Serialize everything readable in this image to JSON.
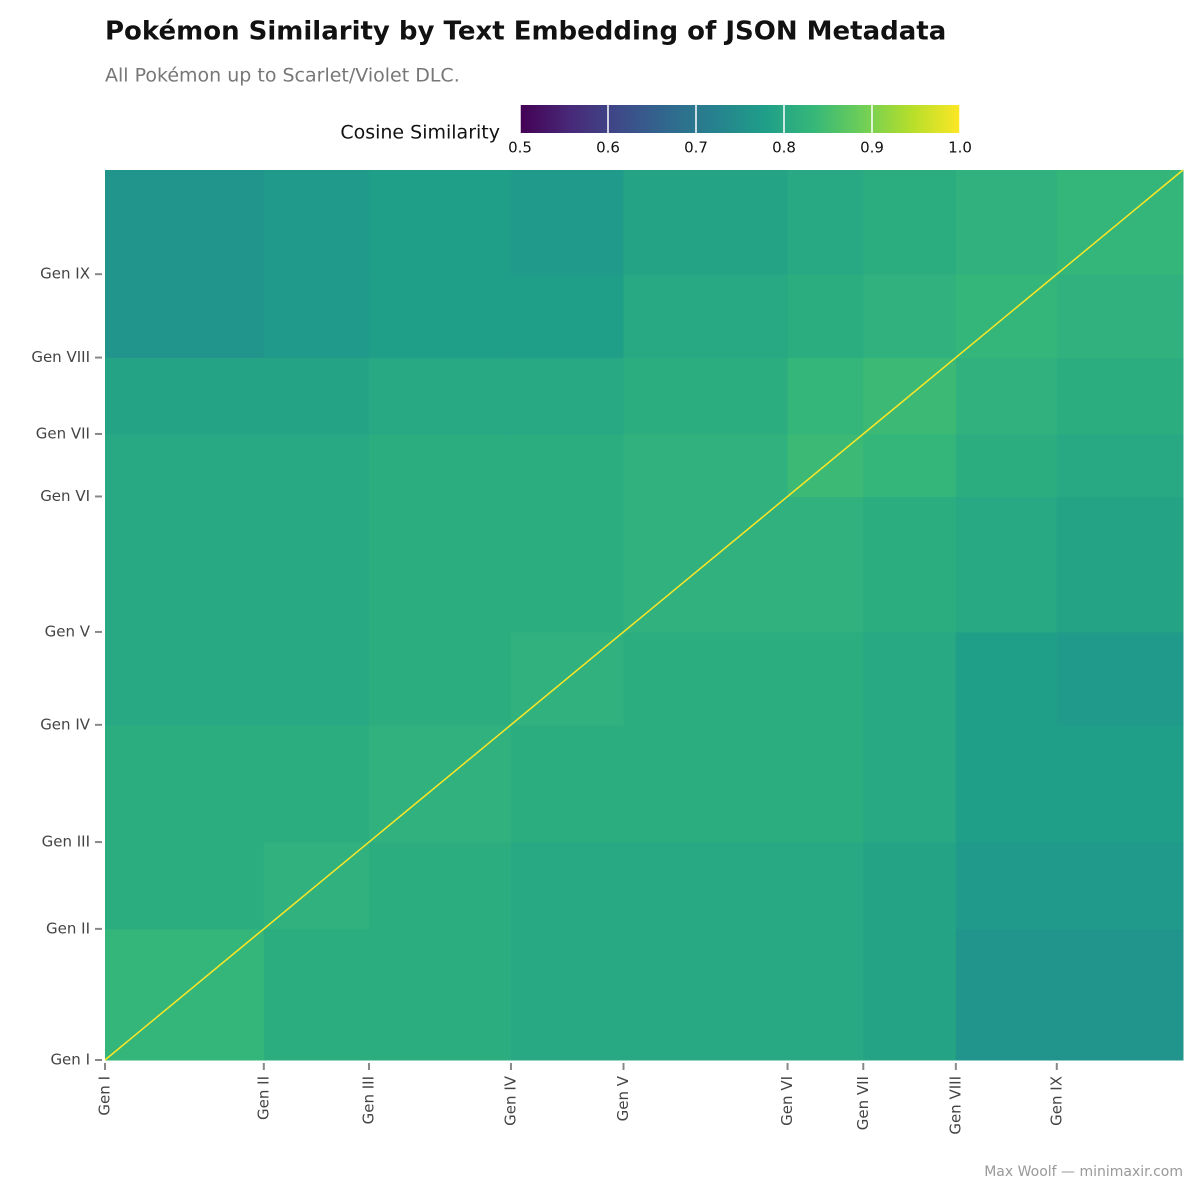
{
  "chart_data": {
    "type": "heatmap",
    "title": "Pokémon Similarity by Text Embedding of JSON Metadata",
    "subtitle": "All Pokémon up to Scarlet/Violet DLC.",
    "caption": "Max Woolf — minimaxir.com",
    "colorbar_label": "Cosine Similarity",
    "colormap": "viridis",
    "clim": [
      0.5,
      1.0
    ],
    "cticks": [
      0.5,
      0.6,
      0.7,
      0.8,
      0.9,
      {
        "value": 1.0,
        "label": "1.0"
      }
    ],
    "xlim": [
      1,
      1026
    ],
    "ylim": [
      1,
      1026
    ],
    "xticks": [
      {
        "value": 1,
        "label": "Gen I"
      },
      {
        "value": 152,
        "label": "Gen II"
      },
      {
        "value": 252,
        "label": "Gen III"
      },
      {
        "value": 387,
        "label": "Gen IV"
      },
      {
        "value": 494,
        "label": "Gen V"
      },
      {
        "value": 650,
        "label": "Gen VI"
      },
      {
        "value": 722,
        "label": "Gen VII"
      },
      {
        "value": 810,
        "label": "Gen VIII"
      },
      {
        "value": 906,
        "label": "Gen IX"
      }
    ],
    "yticks": [
      {
        "value": 1,
        "label": "Gen I"
      },
      {
        "value": 152,
        "label": "Gen II"
      },
      {
        "value": 252,
        "label": "Gen III"
      },
      {
        "value": 387,
        "label": "Gen IV"
      },
      {
        "value": 494,
        "label": "Gen V"
      },
      {
        "value": 650,
        "label": "Gen VI"
      },
      {
        "value": 722,
        "label": "Gen VII"
      },
      {
        "value": 810,
        "label": "Gen VIII"
      },
      {
        "value": 906,
        "label": "Gen IX"
      }
    ],
    "diagonal_value": 1.0,
    "values": [
      [
        0.83,
        0.81,
        0.81,
        0.8,
        0.8,
        0.8,
        0.79,
        0.76,
        0.76
      ],
      [
        0.81,
        0.82,
        0.81,
        0.8,
        0.8,
        0.8,
        0.79,
        0.77,
        0.77
      ],
      [
        0.81,
        0.81,
        0.82,
        0.81,
        0.81,
        0.81,
        0.8,
        0.78,
        0.78
      ],
      [
        0.8,
        0.8,
        0.81,
        0.82,
        0.81,
        0.81,
        0.8,
        0.78,
        0.77
      ],
      [
        0.8,
        0.8,
        0.81,
        0.81,
        0.82,
        0.82,
        0.81,
        0.8,
        0.79
      ],
      [
        0.8,
        0.8,
        0.81,
        0.81,
        0.82,
        0.84,
        0.83,
        0.81,
        0.8
      ],
      [
        0.79,
        0.79,
        0.8,
        0.8,
        0.81,
        0.83,
        0.84,
        0.82,
        0.81
      ],
      [
        0.76,
        0.77,
        0.78,
        0.78,
        0.8,
        0.81,
        0.82,
        0.83,
        0.82
      ],
      [
        0.76,
        0.77,
        0.78,
        0.77,
        0.79,
        0.8,
        0.81,
        0.82,
        0.83
      ]
    ]
  }
}
